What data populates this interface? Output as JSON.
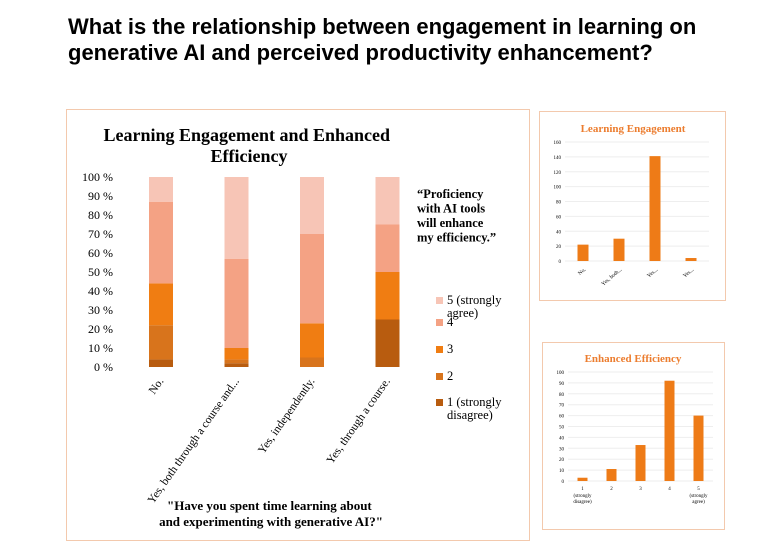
{
  "slide": {
    "title": "What is the relationship between engagement in learning on generative AI and perceived productivity enhancement?"
  },
  "colors": {
    "level1": "#b85c0f",
    "level2": "#d8741c",
    "level3": "#f07d12",
    "level4": "#f4a284",
    "level5": "#f7c5b6",
    "single_bar": "#ee7b17",
    "grid": "#eeeeee",
    "panel_border": "#f3c9ad",
    "small_title": "#ec7d2f"
  },
  "chart_data": [
    {
      "type": "bar",
      "stacked": "percent",
      "title": "Learning Engagement and Enhanced Efficiency",
      "xlabel": "\"Have you spent time learning about and experimenting with generative AI?\"",
      "ylabel": "",
      "ylim": [
        0,
        100
      ],
      "yticks": [
        "0 %",
        "10 %",
        "20 %",
        "30 %",
        "40 %",
        "50 %",
        "60 %",
        "70 %",
        "80 %",
        "90 %",
        "100 %"
      ],
      "categories": [
        "No.",
        "Yes, both through a course and...",
        "Yes, independently.",
        "Yes, through a course."
      ],
      "legend_title": "“Proficiency with AI tools will enhance my efficiency.”",
      "legend_position": "right",
      "series": [
        {
          "name": "1 (strongly disagree)",
          "values": [
            4,
            2,
            0,
            25
          ]
        },
        {
          "name": "2",
          "values": [
            18,
            2,
            5,
            0
          ]
        },
        {
          "name": "3",
          "values": [
            22,
            6,
            18,
            25
          ]
        },
        {
          "name": "4",
          "values": [
            43,
            47,
            47,
            25
          ]
        },
        {
          "name": "5 (strongly agree)",
          "values": [
            13,
            43,
            30,
            25
          ]
        }
      ],
      "grid": false
    },
    {
      "type": "bar",
      "title": "Learning Engagement",
      "categories": [
        "No.",
        "Yes, both...",
        "Yes...",
        "Yes..."
      ],
      "values": [
        22,
        30,
        141,
        4
      ],
      "ylim": [
        0,
        160
      ],
      "yticks": [
        "0",
        "20",
        "40",
        "60",
        "80",
        "100",
        "120",
        "140",
        "160"
      ],
      "grid": true
    },
    {
      "type": "bar",
      "title": "Enhanced Efficiency",
      "categories": [
        "1 (strongly disagree)",
        "2",
        "3",
        "4",
        "5 (strongly agree)"
      ],
      "values": [
        3,
        11,
        33,
        92,
        60
      ],
      "ylim": [
        0,
        100
      ],
      "yticks": [
        "0",
        "10",
        "20",
        "30",
        "40",
        "50",
        "60",
        "70",
        "80",
        "90",
        "100"
      ],
      "grid": true
    }
  ]
}
